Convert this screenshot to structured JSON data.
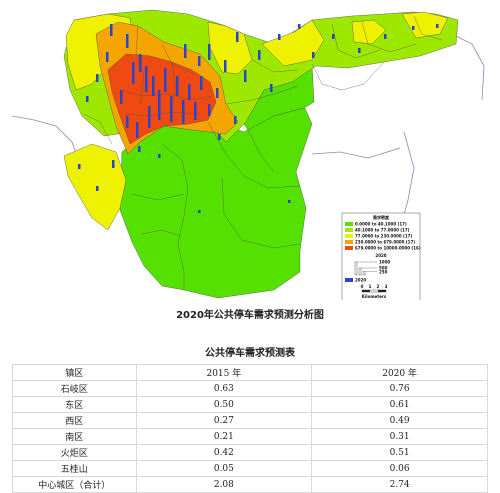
{
  "map": {
    "legend_title": "需求密度",
    "legend_classes": [
      {
        "label": "0.0000 to 40.1000 (17)",
        "color": "#55e000"
      },
      {
        "label": "40.1000 to 77.0000 (17)",
        "color": "#9ee800"
      },
      {
        "label": "77.0000 to 230.0000 (17)",
        "color": "#eef200"
      },
      {
        "label": "230.0000 to 679.0000 (17)",
        "color": "#f5a500"
      },
      {
        "label": "679.0000 to 10000.0000 (16)",
        "color": "#ef4a12"
      }
    ],
    "legend_year_top": "2020",
    "legend_bar_values": [
      "1000",
      "500",
      "250"
    ],
    "legend_bar_series": "2020",
    "scale_ticks": [
      "0",
      "1",
      "2",
      "3"
    ],
    "scale_unit": "Kilometers",
    "bar_color": "#2a44cc",
    "boundary_color": "#9a7fb8"
  },
  "map_caption": "2020年公共停车需求预测分析图",
  "table": {
    "title": "公共停车需求预测表",
    "headers": [
      "镇区",
      "2015 年",
      "2020 年"
    ],
    "rows": [
      [
        "石岐区",
        "0.63",
        "0.76"
      ],
      [
        "东区",
        "0.50",
        "0.61"
      ],
      [
        "西区",
        "0.27",
        "0.49"
      ],
      [
        "南区",
        "0.21",
        "0.31"
      ],
      [
        "火炬区",
        "0.42",
        "0.51"
      ],
      [
        "五桂山",
        "0.05",
        "0.06"
      ],
      [
        "中心城区（合计）",
        "2.08",
        "2.74"
      ]
    ]
  }
}
